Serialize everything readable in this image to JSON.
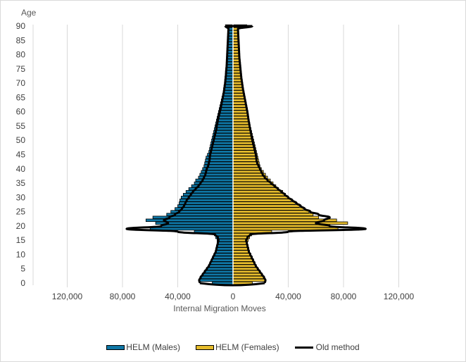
{
  "chart_data": {
    "type": "bar",
    "subtype": "population-pyramid (horizontal stacked) with line overlay",
    "title": "",
    "ylabel": "Age",
    "xlabel": "Internal Migration Moves",
    "x_ticks": [
      "120,000",
      "80,000",
      "40,000",
      "0",
      "40,000",
      "80,000",
      "120,000"
    ],
    "y_ticks": [
      "0",
      "5",
      "10",
      "15",
      "20",
      "25",
      "30",
      "35",
      "40",
      "45",
      "50",
      "55",
      "60",
      "65",
      "70",
      "75",
      "80",
      "85",
      "90"
    ],
    "xlim": [
      -120000,
      120000
    ],
    "ylim": [
      0,
      90
    ],
    "grid": {
      "vertical": true,
      "horizontal": false
    },
    "legend_position": "bottom",
    "colors": {
      "males": "#0f77a6",
      "females": "#e6bc2c",
      "old_method": "#000000",
      "grid": "#d9d9d9",
      "center_line": "#ffffff"
    },
    "categories": [
      0,
      1,
      2,
      3,
      4,
      5,
      6,
      7,
      8,
      9,
      10,
      11,
      12,
      13,
      14,
      15,
      16,
      17,
      18,
      19,
      20,
      21,
      22,
      23,
      24,
      25,
      26,
      27,
      28,
      29,
      30,
      31,
      32,
      33,
      34,
      35,
      36,
      37,
      38,
      39,
      40,
      41,
      42,
      43,
      44,
      45,
      46,
      47,
      48,
      49,
      50,
      51,
      52,
      53,
      54,
      55,
      56,
      57,
      58,
      59,
      60,
      61,
      62,
      63,
      64,
      65,
      66,
      67,
      68,
      69,
      70,
      71,
      72,
      73,
      74,
      75,
      76,
      77,
      78,
      79,
      80,
      81,
      82,
      83,
      84,
      85,
      86,
      87,
      88,
      89,
      90
    ],
    "series": [
      {
        "name": "HELM (Males)",
        "values": [
          15000,
          24000,
          23000,
          22000,
          20000,
          18500,
          17500,
          16500,
          15500,
          14500,
          13500,
          12500,
          12000,
          11500,
          11000,
          11500,
          12500,
          13500,
          28000,
          60000,
          52000,
          56000,
          63000,
          58000,
          48000,
          45000,
          42000,
          40000,
          39000,
          38500,
          37500,
          36000,
          34000,
          32000,
          30000,
          28000,
          27000,
          25000,
          24000,
          23000,
          22000,
          21000,
          20500,
          20000,
          19500,
          18500,
          17500,
          17000,
          16500,
          16000,
          15500,
          15000,
          14500,
          14000,
          13500,
          13000,
          12500,
          12000,
          11500,
          11000,
          10500,
          10000,
          9500,
          9000,
          8500,
          8000,
          7500,
          7000,
          6800,
          6500,
          6200,
          6000,
          5800,
          5600,
          5400,
          5200,
          5000,
          4800,
          4600,
          4500,
          4400,
          4300,
          4200,
          4100,
          4000,
          3900,
          3800,
          3700,
          3600,
          3500,
          5500
        ]
      },
      {
        "name": "HELM (Females)",
        "values": [
          14000,
          23000,
          22000,
          21000,
          19500,
          18000,
          17000,
          16000,
          15000,
          14000,
          13000,
          12000,
          11500,
          11000,
          10500,
          11000,
          12000,
          13500,
          28000,
          76000,
          70000,
          83000,
          75000,
          62000,
          58000,
          55000,
          51000,
          48000,
          45000,
          42000,
          40000,
          38000,
          36000,
          33000,
          31000,
          29000,
          27000,
          25000,
          23500,
          22000,
          20500,
          19500,
          19000,
          18500,
          18000,
          17500,
          17000,
          16500,
          16000,
          15500,
          15000,
          14500,
          14000,
          13500,
          13000,
          12500,
          12000,
          11500,
          11000,
          10500,
          10000,
          9500,
          9200,
          8800,
          8500,
          8000,
          7600,
          7200,
          6900,
          6600,
          6300,
          6000,
          5800,
          5600,
          5400,
          5200,
          5000,
          4800,
          4600,
          4500,
          4400,
          4300,
          4200,
          4100,
          4000,
          3900,
          3800,
          3700,
          3600,
          3500,
          10000
        ]
      },
      {
        "name": "Old method",
        "type": "line",
        "values_males": [
          24000,
          24500,
          23500,
          22000,
          20500,
          19000,
          17500,
          16500,
          15500,
          14500,
          13500,
          12500,
          12000,
          11500,
          11000,
          10500,
          11000,
          13000,
          40000,
          77000,
          52000,
          47000,
          50000,
          46000,
          42000,
          39000,
          37000,
          35500,
          34500,
          33500,
          32000,
          30500,
          29000,
          27000,
          25000,
          23500,
          22000,
          21000,
          20000,
          19500,
          19000,
          18000,
          17500,
          17000,
          16800,
          16500,
          16000,
          15500,
          15000,
          14500,
          14000,
          13500,
          13000,
          12500,
          12000,
          11800,
          11300,
          11000,
          10500,
          10000,
          9500,
          9000,
          8600,
          8200,
          7800,
          7400,
          7000,
          6600,
          6300,
          6000,
          5700,
          5500,
          5300,
          5100,
          5000,
          4800,
          4600,
          4500,
          4400,
          4300,
          4200,
          4100,
          4000,
          3900,
          3800,
          3700,
          3600,
          3500,
          3400,
          3300,
          5500
        ],
        "values_females": [
          23000,
          23500,
          22500,
          21000,
          19500,
          18000,
          16500,
          15500,
          14500,
          13500,
          12500,
          11500,
          11000,
          10500,
          10000,
          9500,
          10500,
          12500,
          40000,
          96000,
          70000,
          60000,
          66000,
          70000,
          62000,
          56000,
          52000,
          49000,
          46000,
          43000,
          40000,
          37500,
          35000,
          32500,
          30000,
          27500,
          25000,
          23000,
          21500,
          20500,
          19500,
          18500,
          17500,
          17000,
          16800,
          16500,
          16000,
          15500,
          15000,
          14500,
          14000,
          13600,
          13200,
          12800,
          12400,
          12000,
          11700,
          11300,
          11000,
          10700,
          10400,
          10000,
          9600,
          9200,
          8800,
          8400,
          8000,
          7600,
          7200,
          6900,
          6600,
          6300,
          6000,
          5800,
          5600,
          5400,
          5200,
          5000,
          4800,
          4600,
          4500,
          4400,
          4300,
          4200,
          4100,
          4000,
          3900,
          3800,
          3700,
          3600,
          14000
        ]
      }
    ]
  },
  "legend": {
    "males_label": "HELM (Males)",
    "females_label": "HELM (Females)",
    "old_label": "Old method"
  },
  "axis": {
    "y_title": "Age",
    "x_title": "Internal Migration Moves"
  }
}
